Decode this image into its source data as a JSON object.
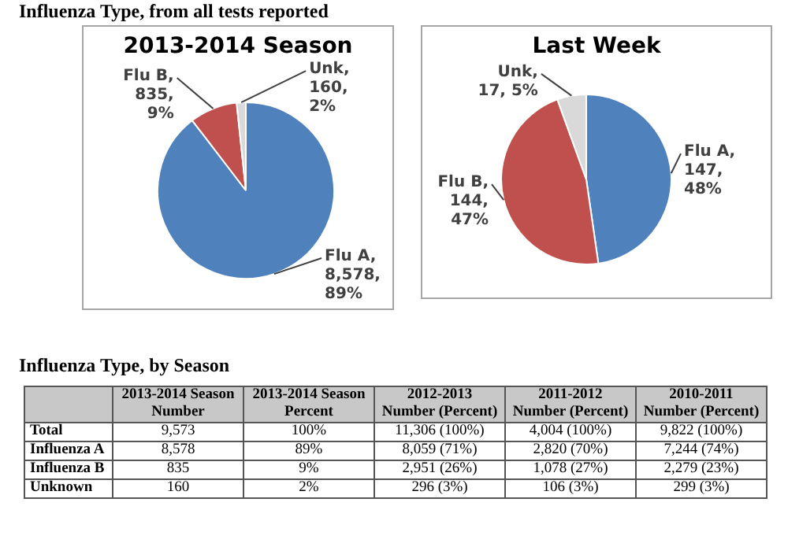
{
  "chart_data": [
    {
      "type": "pie",
      "title": "2013-2014 Season",
      "annotations": [
        "Influenza Type, from all tests reported"
      ],
      "categories": [
        "Flu A",
        "Flu B",
        "Unk"
      ],
      "values": [
        8578,
        835,
        160
      ],
      "colors": [
        "#4f81bd",
        "#c0504d",
        "#d9d9d9"
      ],
      "value_labels": [
        ",\n8,578,\n89%",
        ",\n835,\n9%",
        ",\n160,\n2%"
      ]
    },
    {
      "type": "pie",
      "title": "Last Week",
      "categories": [
        "Flu A",
        "Flu B",
        "Unk"
      ],
      "values": [
        147,
        144,
        17
      ],
      "colors": [
        "#4f81bd",
        "#c0504d",
        "#d9d9d9"
      ],
      "value_labels": [
        ",\n147,\n48%",
        ",\n144,\n47%",
        ",\n17, 5%"
      ]
    },
    {
      "type": "other",
      "title": "Influenza Type, by Season",
      "categories": [
        null,
        "2013-2014 Season Number",
        "2013-2014 Season Percent",
        "2012-2013 Number (Percent)",
        "2011-2012 Number (Percent)",
        "2010-2011 Number (Percent)"
      ],
      "y_categories": [
        "Total",
        "Influenza A",
        "Influenza B",
        "Unknown"
      ],
      "cell_labels": [
        [
          "9,573",
          "100%",
          "11,306 (100%)",
          "4,004 (100%)",
          "9,822 (100%)"
        ],
        [
          "8,578",
          "89%",
          "8,059 (71%)",
          "2,820 (70%)",
          "7,244 (74%)"
        ],
        [
          "835",
          "9%",
          "2,951 (26%)",
          "1,078 (27%)",
          "2,279 (23%)"
        ],
        [
          "160",
          "2%",
          "296 (3%)",
          "106 (3%)",
          "299 (3%)"
        ]
      ]
    }
  ]
}
